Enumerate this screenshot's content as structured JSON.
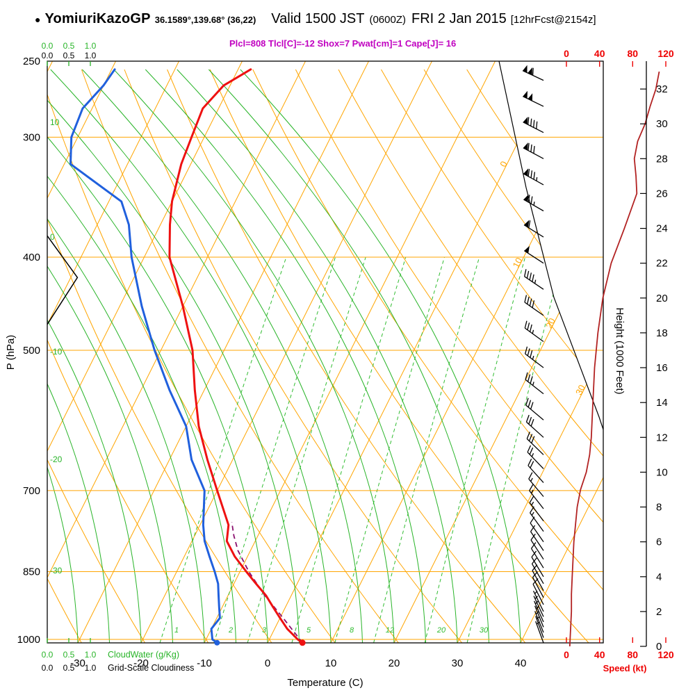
{
  "header": {
    "bullet": "●",
    "station": "YomiuriKazoGP",
    "coords": "36.1589°,139.68° (36,22)",
    "valid": "Valid 1500 JST",
    "zulu": "(0600Z)",
    "date": "FRI 2 Jan 2015",
    "fcst": "[12hrFcst@2154z]",
    "indices": "Plcl=808 Tlcl[C]=-12 Shox=7 Pwat[cm]=1 Cape[J]= 16"
  },
  "colors": {
    "isotherm": "#ffa500",
    "dry_adiabat": "#ffa500",
    "moist_adiabat": "#28b428",
    "mixing_ratio": "#30bc30",
    "temperature": "#ee1111",
    "dewpoint": "#2060dd",
    "parcel": "#8a0f6e",
    "speed_curve": "#b22222",
    "speed_axis": "#ee0000",
    "indices_text": "#c000c0",
    "frame": "#000000"
  },
  "axes": {
    "pressure_label": "P (hPa)",
    "pressure_ticks": [
      250,
      300,
      400,
      500,
      700,
      850,
      1000
    ],
    "temp_label": "Temperature (C)",
    "temp_ticks": [
      -30,
      -20,
      -10,
      0,
      10,
      20,
      30,
      40
    ],
    "height_label": "Height (1000 Feet)",
    "height_ticks": [
      0,
      2,
      4,
      6,
      8,
      10,
      12,
      14,
      16,
      18,
      20,
      22,
      24,
      26,
      28,
      30,
      32
    ],
    "speed_label": "Speed (kt)",
    "speed_ticks": [
      0,
      40,
      80,
      120
    ],
    "cloudwater_label": "CloudWater (g/Kg)",
    "cloudwater_ticks": [
      "0.0",
      "0.5",
      "1.0"
    ],
    "cloudiness_label": "Grid-Scale Cloudiness",
    "cloudiness_ticks": [
      "0.0",
      "0.5",
      "1.0"
    ]
  },
  "chart_data": {
    "type": "line",
    "subtype": "skew-t_log-p_sounding",
    "title": "YomiuriKazoGP 36.1589,139.68 (36,22) Valid 1500 JST (0600Z) FRI 2 Jan 2015 [12hrFcst@2154z]",
    "x_axis": {
      "label": "Temperature (C)",
      "range_C": [
        -35,
        45
      ],
      "ticks": [
        -30,
        -20,
        -10,
        0,
        10,
        20,
        30,
        40
      ]
    },
    "y_axis": {
      "label": "P (hPa)",
      "scale": "log",
      "range_hPa": [
        1008,
        250
      ],
      "ticks": [
        250,
        300,
        400,
        500,
        700,
        850,
        1000
      ]
    },
    "y2_axis": {
      "label": "Height (1000 Feet)",
      "range_kft": [
        0,
        33
      ],
      "ticks": [
        0,
        2,
        4,
        6,
        8,
        10,
        12,
        14,
        16,
        18,
        20,
        22,
        24,
        26,
        28,
        30,
        32
      ]
    },
    "speed_axis": {
      "label": "Speed (kt)",
      "range_kt": [
        0,
        120
      ],
      "ticks": [
        0,
        40,
        80,
        120
      ]
    },
    "indices": {
      "Plcl_hPa": 808,
      "Tlcl_C": -12,
      "Showalter": 7,
      "Pwat_cm": 1,
      "Cape_J": 16
    },
    "sounding": {
      "pressure_hPa": [
        1008,
        1000,
        975,
        950,
        925,
        900,
        875,
        850,
        820,
        790,
        760,
        700,
        650,
        600,
        550,
        500,
        450,
        400,
        370,
        350,
        320,
        300,
        280,
        265,
        255
      ],
      "temperature_C": [
        5.5,
        4.5,
        2,
        0,
        -2,
        -4,
        -6.5,
        -9,
        -12,
        -14.5,
        -15.5,
        -20,
        -24,
        -28,
        -31.5,
        -35,
        -40,
        -46,
        -48.5,
        -50,
        -51.5,
        -52,
        -52.5,
        -51,
        -48
      ],
      "dewpoint_C": [
        -8,
        -9,
        -10,
        -9.5,
        -10.5,
        -11.5,
        -12.5,
        -14,
        -16,
        -18,
        -19.5,
        -22,
        -26.5,
        -30,
        -35.5,
        -41,
        -46.5,
        -52,
        -55,
        -58,
        -69,
        -71,
        -71.5,
        -70,
        -69.5
      ]
    },
    "parcel_trace": {
      "pressure_hPa": [
        1008,
        950,
        900,
        850,
        808,
        780,
        755
      ],
      "temperature_C": [
        5.5,
        0.5,
        -4.2,
        -8.6,
        -12,
        -13.8,
        -15.2
      ]
    },
    "wind_speed_profile": {
      "height_kft": [
        0,
        1,
        2,
        3,
        4,
        5,
        6,
        7,
        8,
        9,
        10,
        11,
        12,
        14,
        16,
        18,
        20,
        22,
        24,
        26,
        27,
        28,
        29,
        30,
        31,
        32,
        33
      ],
      "speed_kt": [
        4,
        5,
        6,
        6,
        7,
        8,
        9,
        11,
        13,
        17,
        24,
        28,
        30,
        32,
        34,
        38,
        44,
        54,
        70,
        85,
        84,
        82,
        86,
        95,
        101,
        108,
        112
      ]
    },
    "wind_barbs": [
      [
        0.2,
        5,
        340
      ],
      [
        0.5,
        5,
        340
      ],
      [
        0.8,
        5,
        338
      ],
      [
        1.1,
        6,
        338
      ],
      [
        1.4,
        6,
        336
      ],
      [
        1.7,
        7,
        335
      ],
      [
        2.0,
        7,
        334
      ],
      [
        2.4,
        8,
        333
      ],
      [
        2.8,
        8,
        332
      ],
      [
        3.2,
        9,
        331
      ],
      [
        3.6,
        9,
        330
      ],
      [
        4.0,
        10,
        329
      ],
      [
        4.5,
        10,
        328
      ],
      [
        5.0,
        10,
        327
      ],
      [
        5.5,
        11,
        326
      ],
      [
        6.0,
        12,
        325
      ],
      [
        6.6,
        13,
        324
      ],
      [
        7.2,
        14,
        323
      ],
      [
        7.9,
        15,
        322
      ],
      [
        8.6,
        17,
        320
      ],
      [
        9.4,
        20,
        318
      ],
      [
        10.2,
        24,
        316
      ],
      [
        11.0,
        28,
        314
      ],
      [
        12.0,
        30,
        312
      ],
      [
        13.0,
        32,
        310
      ],
      [
        14.5,
        33,
        308
      ],
      [
        16.0,
        35,
        307
      ],
      [
        17.5,
        37,
        306
      ],
      [
        19.0,
        40,
        305
      ],
      [
        20.5,
        45,
        304
      ],
      [
        22.0,
        52,
        303
      ],
      [
        23.5,
        62,
        302
      ],
      [
        25.0,
        75,
        300
      ],
      [
        26.5,
        85,
        299
      ],
      [
        28.0,
        82,
        298
      ],
      [
        29.5,
        92,
        297
      ],
      [
        31.0,
        102,
        296
      ],
      [
        32.5,
        110,
        295
      ]
    ],
    "cloud_water_g_per_kg": {
      "pressure_hPa": [
        470,
        420,
        380
      ],
      "value": [
        0,
        0.7,
        0
      ]
    },
    "isotherm_inline_labels": [
      0,
      10,
      20,
      30
    ],
    "moist_adiabat_labels": [
      10,
      0,
      -10,
      -20,
      -30
    ],
    "mixing_ratio_lines_g_per_kg": [
      1,
      2,
      3,
      5,
      8,
      12,
      20,
      30
    ]
  }
}
